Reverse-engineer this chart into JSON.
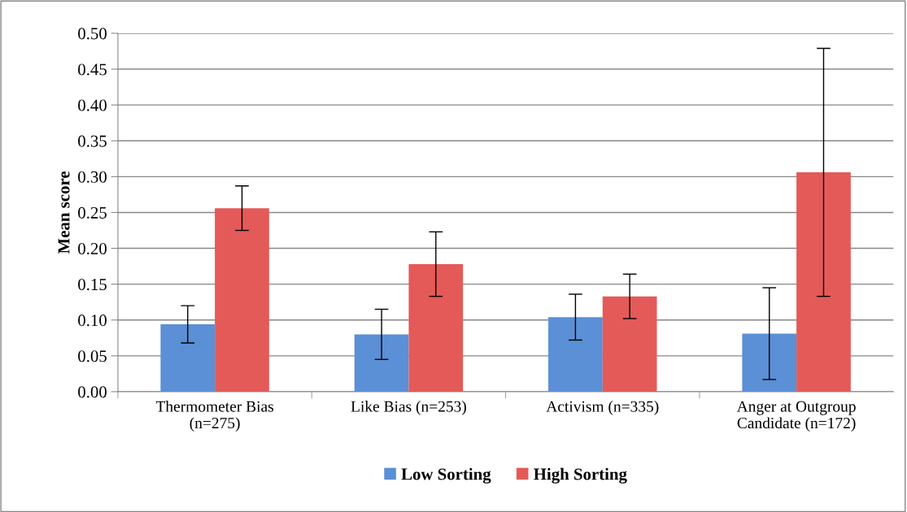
{
  "chart_data": {
    "type": "bar",
    "ylabel": "Mean score",
    "categories": [
      "Thermometer Bias\n(n=275)",
      "Like Bias (n=253)",
      "Activism (n=335)",
      "Anger at Outgroup\nCandidate (n=172)"
    ],
    "series": [
      {
        "name": "Low Sorting",
        "color": "#5b8fd6",
        "values": [
          0.094,
          0.08,
          0.104,
          0.081
        ],
        "errors": [
          0.026,
          0.035,
          0.032,
          0.064
        ]
      },
      {
        "name": "High Sorting",
        "color": "#e45a58",
        "values": [
          0.256,
          0.178,
          0.133,
          0.306
        ],
        "errors": [
          0.031,
          0.045,
          0.031,
          0.173
        ]
      }
    ],
    "ylim": [
      0,
      0.5
    ],
    "yticks": [
      {
        "value": 0,
        "label": "0.00"
      },
      {
        "value": 0.05,
        "label": "0.05"
      },
      {
        "value": 0.1,
        "label": "0.10"
      },
      {
        "value": 0.15,
        "label": "0.15"
      },
      {
        "value": 0.2,
        "label": "0.20"
      },
      {
        "value": 0.25,
        "label": "0.25"
      },
      {
        "value": 0.3,
        "label": "0.30"
      },
      {
        "value": 0.35,
        "label": "0.35"
      },
      {
        "value": 0.4,
        "label": "0.40"
      },
      {
        "value": 0.45,
        "label": "0.45"
      },
      {
        "value": 0.5,
        "label": "0.50"
      }
    ],
    "grid": "y",
    "legend": "bottom"
  }
}
